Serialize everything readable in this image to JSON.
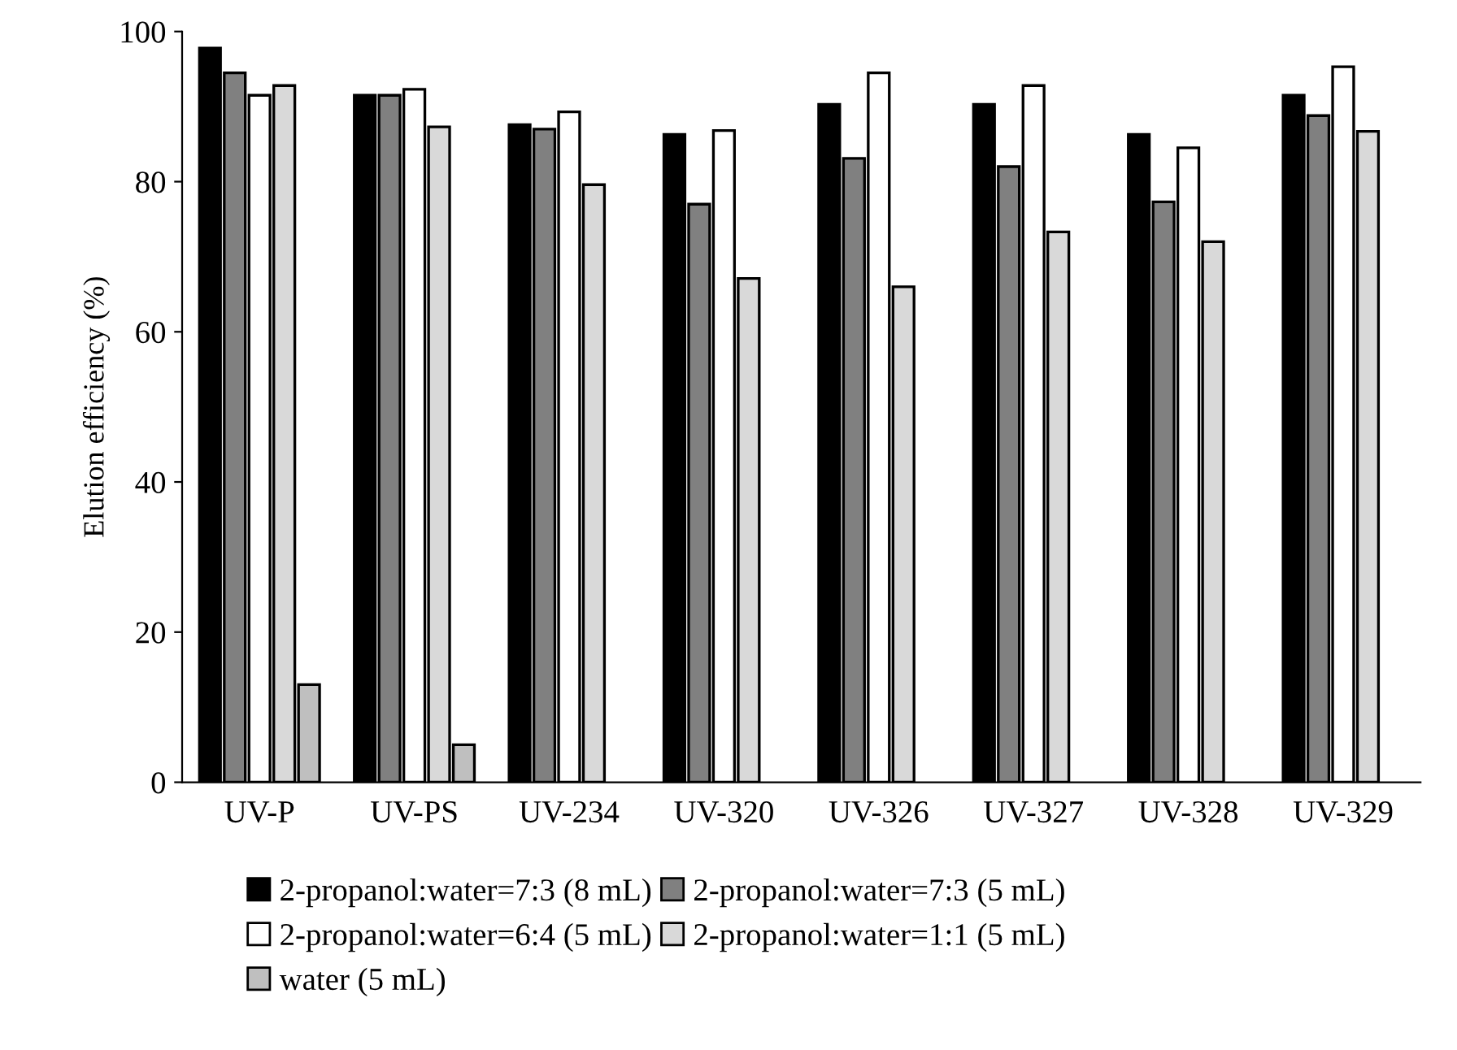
{
  "chart_data": {
    "type": "bar",
    "ylabel": "Elution efficiency (%)",
    "categories": [
      "UV-P",
      "UV-PS",
      "UV-234",
      "UV-320",
      "UV-326",
      "UV-327",
      "UV-328",
      "UV-329"
    ],
    "series": [
      {
        "name": "2-propanol:water=7:3 (8 mL)",
        "color": "#000000",
        "values": [
          97.8,
          91.5,
          87.6,
          86.3,
          90.3,
          90.3,
          86.3,
          91.5
        ]
      },
      {
        "name": "2-propanol:water=7:3 (5 mL)",
        "color": "#808080",
        "values": [
          94.5,
          91.5,
          87.0,
          77.0,
          83.1,
          82.0,
          77.3,
          88.8
        ]
      },
      {
        "name": "2-propanol:water=6:4 (5 mL)",
        "color": "#ffffff",
        "values": [
          91.5,
          92.3,
          89.3,
          86.8,
          94.5,
          92.8,
          84.5,
          95.3
        ]
      },
      {
        "name": "2-propanol:water=1:1 (5 mL)",
        "color": "#d9d9d9",
        "values": [
          92.8,
          87.3,
          79.6,
          67.1,
          66.0,
          73.3,
          72.0,
          86.7
        ]
      },
      {
        "name": "water (5 mL)",
        "color": "#bfbfbf",
        "values": [
          13.0,
          5.0,
          null,
          null,
          null,
          null,
          null,
          null
        ]
      }
    ],
    "ylim": [
      0,
      100
    ],
    "yticks": [
      0,
      20,
      40,
      60,
      80,
      100
    ],
    "grid": false,
    "legend": "bottom"
  }
}
